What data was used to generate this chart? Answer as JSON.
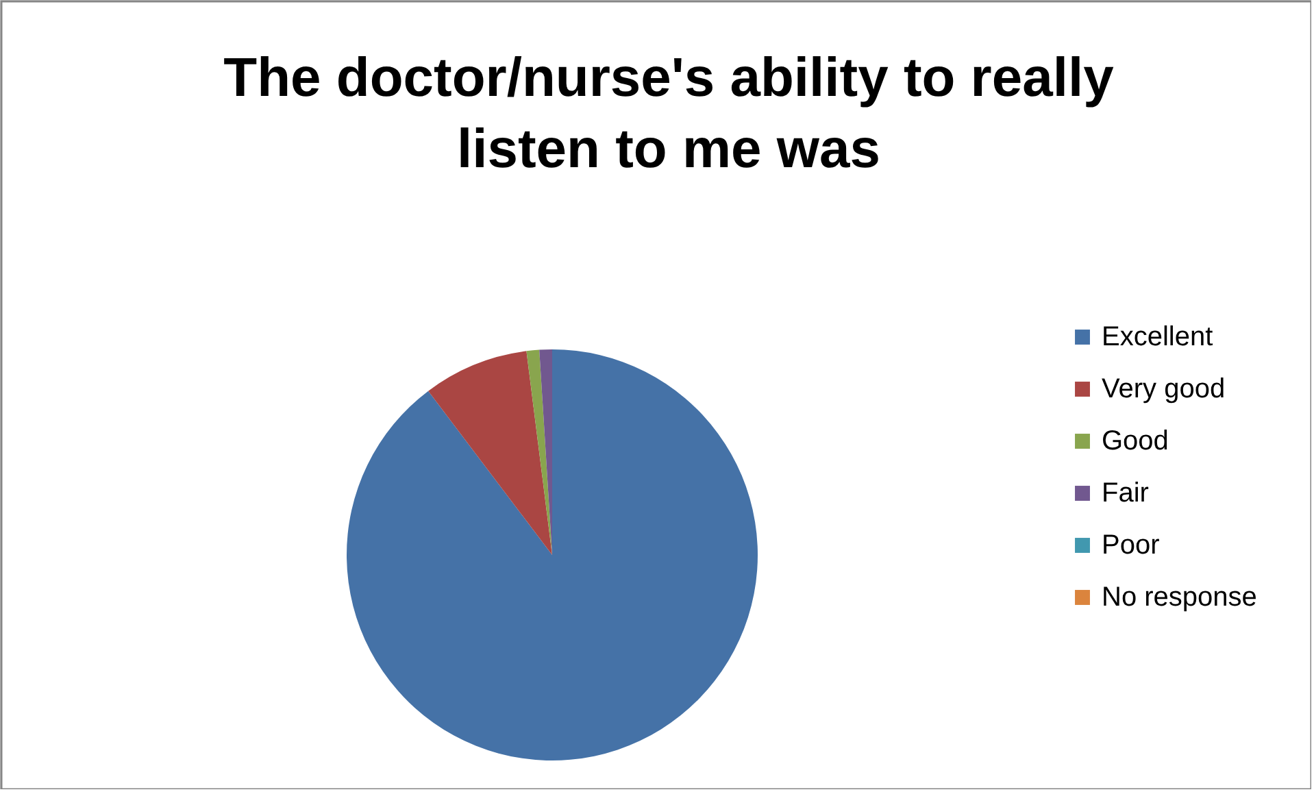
{
  "chart_data": {
    "type": "pie",
    "title": "The doctor/nurse's ability to really listen to me was",
    "categories": [
      "Excellent",
      "Very good",
      "Good",
      "Fair",
      "Poor",
      "No response"
    ],
    "values": [
      89.7,
      8.3,
      1,
      1,
      0,
      0
    ],
    "colors": [
      "#4572a7",
      "#aa4643",
      "#89a54e",
      "#71588f",
      "#4198af",
      "#db843d"
    ],
    "legend": "right"
  }
}
